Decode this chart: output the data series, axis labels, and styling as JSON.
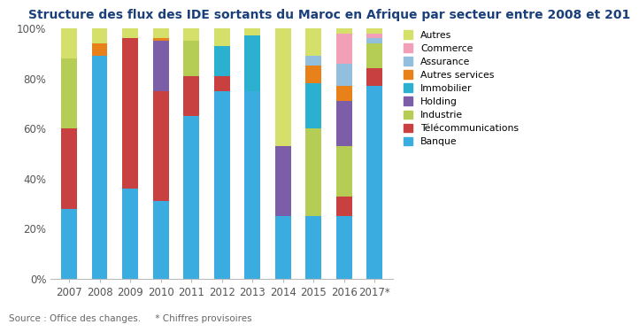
{
  "years": [
    "2007",
    "2008",
    "2009",
    "2010",
    "2011",
    "2012",
    "2013",
    "2014",
    "2015",
    "2016",
    "2017*"
  ],
  "sectors": [
    "Banque",
    "Télécommunications",
    "Industrie",
    "Holding",
    "Immobilier",
    "Autres services",
    "Assurance",
    "Commerce",
    "Autres"
  ],
  "colors": [
    "#3AACE0",
    "#C94040",
    "#B5CC55",
    "#7B5EA7",
    "#2BB0D0",
    "#E8811A",
    "#92BFDD",
    "#F2A0B8",
    "#D4E06A"
  ],
  "data": {
    "Banque": [
      28,
      89,
      36,
      31,
      65,
      75,
      75,
      25,
      25,
      25,
      77
    ],
    "Télécommunications": [
      32,
      0,
      60,
      44,
      16,
      6,
      0,
      0,
      0,
      8,
      7
    ],
    "Industrie": [
      28,
      0,
      0,
      0,
      14,
      0,
      0,
      0,
      35,
      20,
      10
    ],
    "Holding": [
      0,
      0,
      0,
      20,
      0,
      0,
      0,
      28,
      0,
      18,
      0
    ],
    "Immobilier": [
      0,
      0,
      0,
      0,
      0,
      12,
      22,
      0,
      18,
      0,
      0
    ],
    "Autres services": [
      0,
      5,
      0,
      1,
      0,
      0,
      0,
      0,
      7,
      6,
      0
    ],
    "Assurance": [
      0,
      0,
      0,
      0,
      0,
      0,
      0,
      0,
      4,
      9,
      2
    ],
    "Commerce": [
      0,
      0,
      0,
      0,
      0,
      0,
      0,
      0,
      0,
      12,
      2
    ],
    "Autres": [
      12,
      6,
      4,
      4,
      5,
      7,
      3,
      47,
      11,
      2,
      2
    ]
  },
  "title": "Structure des flux des IDE sortants du Maroc en Afrique par secteur entre 2008 et 201",
  "title_color": "#1A3F7A",
  "footnote": "Source : Office des changes.     * Chiffres provisoires",
  "background_color": "#FFFFFF",
  "title_fontsize": 10,
  "tick_fontsize": 8.5
}
